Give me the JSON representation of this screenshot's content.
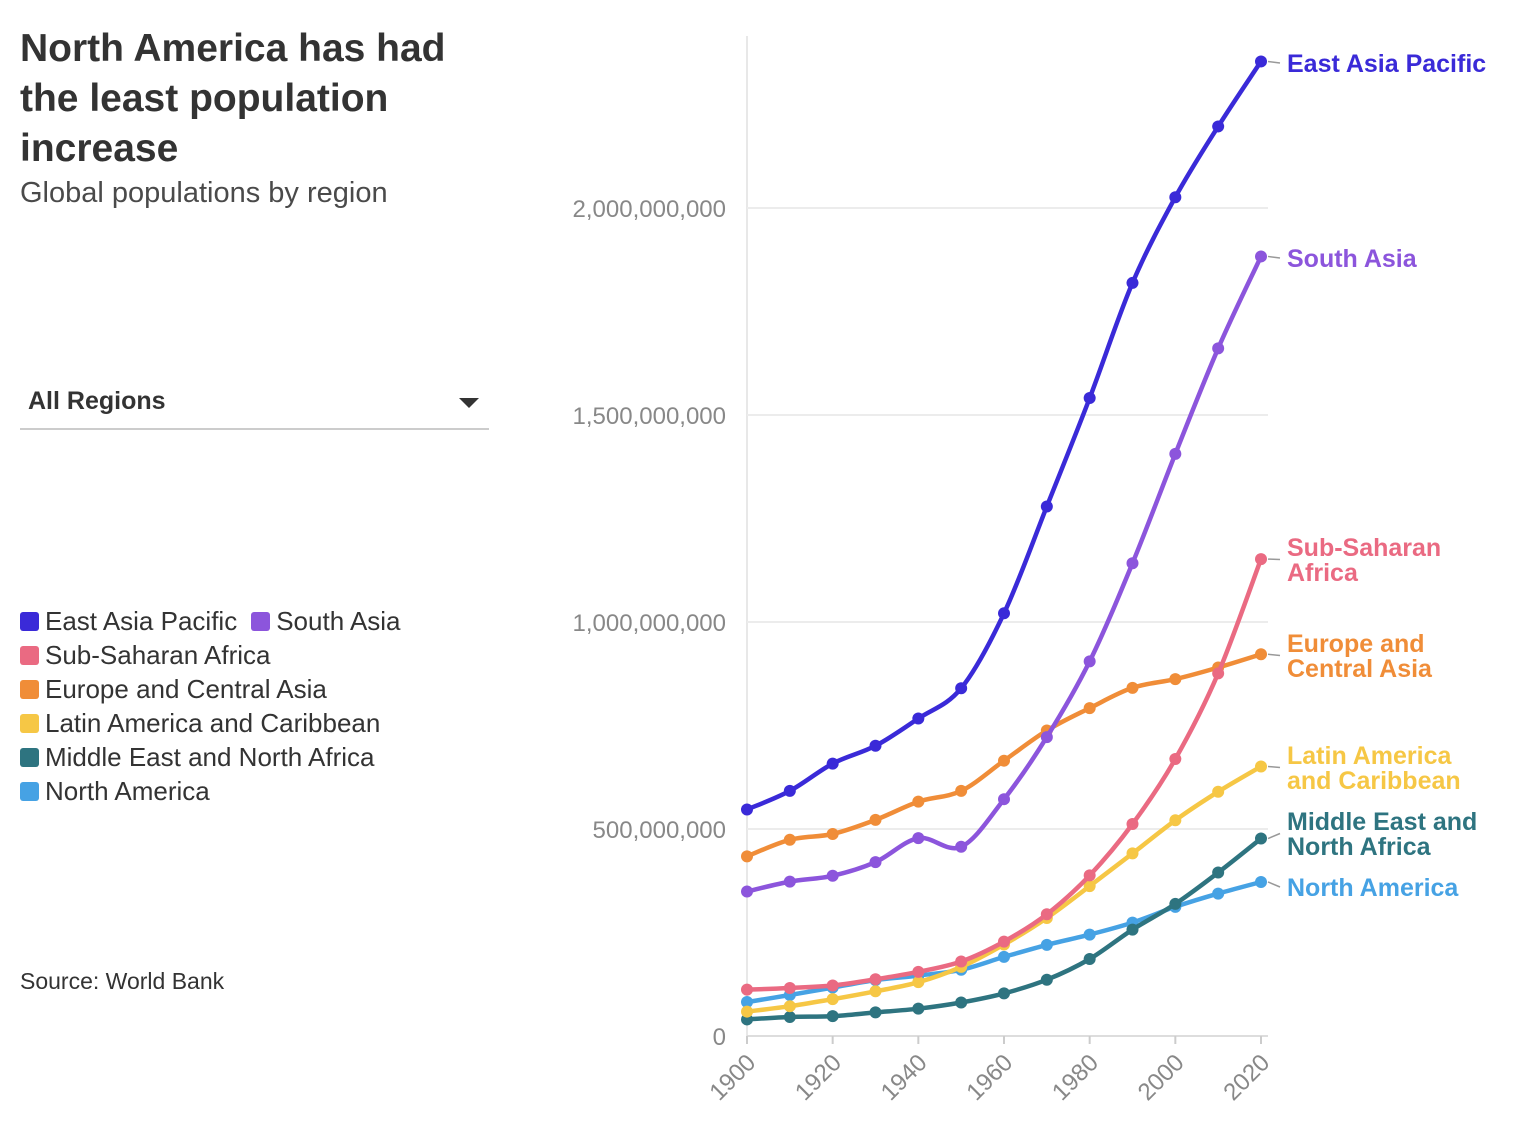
{
  "header": {
    "title": "North America has had the least population increase",
    "subtitle": "Global populations by region"
  },
  "filter": {
    "selected": "All Regions"
  },
  "source": "Source: World Bank",
  "chart_data": {
    "type": "line",
    "title": "North America has had the least population increase",
    "subtitle": "Global populations by region",
    "xlabel": "",
    "ylabel": "",
    "x": [
      1900,
      1910,
      1920,
      1930,
      1940,
      1950,
      1960,
      1970,
      1980,
      1990,
      2000,
      2010,
      2020
    ],
    "x_ticks": [
      "1900",
      "1920",
      "1940",
      "1960",
      "1980",
      "2000",
      "2020"
    ],
    "y_ticks": [
      "0",
      "500,000,000",
      "1,000,000,000",
      "1,500,000,000",
      "2,000,000,000"
    ],
    "xlim": [
      1900,
      2020
    ],
    "ylim": [
      0,
      2430000000
    ],
    "grid": true,
    "legend_position": "left",
    "series": [
      {
        "name": "East Asia Pacific",
        "label_lines": [
          "East Asia Pacific"
        ],
        "color": "#3a2ad8",
        "values": [
          547000000,
          592000000,
          658000000,
          701000000,
          767000000,
          840000000,
          1021000000,
          1279000000,
          1541000000,
          1819000000,
          2026000000,
          2197000000,
          2354000000
        ]
      },
      {
        "name": "South Asia",
        "label_lines": [
          "South Asia"
        ],
        "color": "#8c55dc",
        "values": [
          349000000,
          373000000,
          387000000,
          420000000,
          478000000,
          457000000,
          572000000,
          722000000,
          905000000,
          1142000000,
          1406000000,
          1661000000,
          1883000000
        ]
      },
      {
        "name": "Sub-Saharan Africa",
        "label_lines": [
          "Sub-Saharan",
          "Africa"
        ],
        "color": "#ea6a82",
        "values": [
          112000000,
          116000000,
          122000000,
          137000000,
          155000000,
          180000000,
          228000000,
          294000000,
          388000000,
          512000000,
          669000000,
          876000000,
          1152000000
        ]
      },
      {
        "name": "Europe and Central Asia",
        "label_lines": [
          "Europe and",
          "Central Asia"
        ],
        "color": "#f08d38",
        "values": [
          434000000,
          474000000,
          488000000,
          522000000,
          566000000,
          592000000,
          665000000,
          738000000,
          792000000,
          841000000,
          862000000,
          890000000,
          922000000
        ]
      },
      {
        "name": "Latin America and Caribbean",
        "label_lines": [
          "Latin America",
          "and Caribbean"
        ],
        "color": "#f6c745",
        "values": [
          59000000,
          72000000,
          89000000,
          108000000,
          130000000,
          167000000,
          221000000,
          285000000,
          362000000,
          441000000,
          521000000,
          590000000,
          651000000
        ]
      },
      {
        "name": "Middle East and North Africa",
        "label_lines": [
          "Middle East and",
          "North Africa"
        ],
        "color": "#2e7480",
        "values": [
          40000000,
          46000000,
          48000000,
          57000000,
          66000000,
          81000000,
          103000000,
          136000000,
          186000000,
          257000000,
          319000000,
          395000000,
          477000000
        ]
      },
      {
        "name": "North America",
        "label_lines": [
          "North America"
        ],
        "color": "#46a2e4",
        "values": [
          82000000,
          99000000,
          117000000,
          135000000,
          146000000,
          160000000,
          191000000,
          220000000,
          245000000,
          274000000,
          312000000,
          344000000,
          372000000
        ]
      }
    ]
  }
}
